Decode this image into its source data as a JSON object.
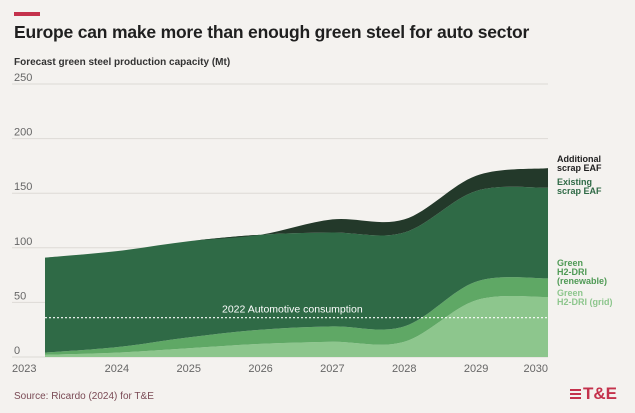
{
  "header": {
    "title": "Europe can make more than enough green steel for auto sector",
    "subtitle": "Forecast green steel production capacity (Mt)"
  },
  "footer": {
    "source": "Source: Ricardo (2024) for T&E",
    "logo": "T&E"
  },
  "colors": {
    "accent": "#c4324c",
    "green_h2_dri_grid": "#8dc68d",
    "green_h2_dri_renewable": "#5fa865",
    "existing_scrap_eaf": "#2f6a46",
    "additional_scrap_eaf": "#23392a",
    "consumption_line": "#ffffff"
  },
  "chart_data": {
    "type": "area",
    "stacked": true,
    "x": [
      2023,
      2024,
      2025,
      2026,
      2027,
      2028,
      2029,
      2030
    ],
    "ylim": [
      0,
      250
    ],
    "yticks": [
      0,
      50,
      100,
      150,
      200,
      250
    ],
    "grid": true,
    "series": [
      {
        "name": "Green H2-DRI (grid)",
        "values": [
          2,
          4,
          8,
          12,
          14,
          14,
          52,
          55
        ]
      },
      {
        "name": "Green H2-DRI (renewable)",
        "values": [
          2,
          5,
          10,
          13,
          14,
          14,
          17,
          17
        ]
      },
      {
        "name": "Existing scrap EAF",
        "values": [
          87,
          88,
          88,
          87,
          86,
          86,
          83,
          83
        ]
      },
      {
        "name": "Additional scrap EAF",
        "values": [
          0,
          0,
          0,
          0,
          12,
          12,
          14,
          18
        ]
      }
    ],
    "reference_line": {
      "label": "2022 Automotive consumption",
      "value": 36
    },
    "legend_placement": "right",
    "legend": [
      {
        "lines": [
          "Additional",
          "scrap EAF"
        ],
        "color": "#1f1f1f"
      },
      {
        "lines": [
          "Existing",
          "scrap EAF"
        ],
        "color": "#2f6a46"
      },
      {
        "lines": [
          "Green",
          "H2-DRI",
          "(renewable)"
        ],
        "color": "#4f9a55"
      },
      {
        "lines": [
          "Green",
          "H2-DRI (grid)"
        ],
        "color": "#8dc68d"
      }
    ]
  }
}
